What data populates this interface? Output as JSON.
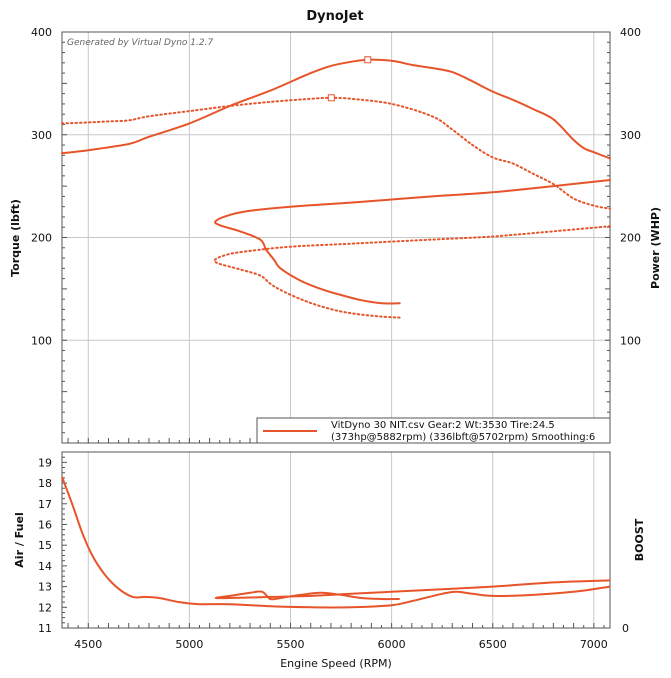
{
  "chart_data": [
    {
      "type": "line",
      "title": "DynoJet",
      "watermark": "Generated by Virtual Dyno 1.2.7",
      "ylabel_left": "Torque (lbft)",
      "ylabel_right": "Power (WHP)",
      "ylim": [
        0,
        400
      ],
      "xlim": [
        4370,
        7080
      ],
      "yticks_left": [
        "100",
        "200",
        "300",
        "400"
      ],
      "yticks_right": [
        "100",
        "200",
        "300",
        "400"
      ],
      "grid": true,
      "legend": {
        "placement": "bottom-right",
        "line1": "VitDyno 30 NIT.csv Gear:2 Wt:3530 Tire:24.5",
        "line2": "(373hp@5882rpm) (336lbft@5702rpm) Smoothing:6"
      },
      "series": [
        {
          "name": "Power",
          "style": "solid",
          "color": "#e8542a",
          "peak": [
            5882,
            373
          ],
          "points": [
            [
              4370,
              282
            ],
            [
              4500,
              285
            ],
            [
              4700,
              291
            ],
            [
              4800,
              298
            ],
            [
              5000,
              311
            ],
            [
              5200,
              328
            ],
            [
              5400,
              343
            ],
            [
              5600,
              360
            ],
            [
              5700,
              367
            ],
            [
              5800,
              371
            ],
            [
              5882,
              373
            ],
            [
              6000,
              372
            ],
            [
              6100,
              368
            ],
            [
              6200,
              365
            ],
            [
              6300,
              361
            ],
            [
              6400,
              352
            ],
            [
              6500,
              342
            ],
            [
              6600,
              334
            ],
            [
              6700,
              325
            ],
            [
              6800,
              315
            ],
            [
              6900,
              295
            ],
            [
              6950,
              287
            ],
            [
              7000,
              283
            ],
            [
              7080,
              277
            ]
          ]
        },
        {
          "name": "Torque",
          "style": "dotted",
          "color": "#e8542a",
          "peak": [
            5702,
            336
          ],
          "points": [
            [
              4370,
              311
            ],
            [
              4500,
              312
            ],
            [
              4600,
              313
            ],
            [
              4700,
              314
            ],
            [
              4800,
              318
            ],
            [
              5000,
              323
            ],
            [
              5200,
              328
            ],
            [
              5400,
              332
            ],
            [
              5600,
              335
            ],
            [
              5702,
              336
            ],
            [
              5800,
              335
            ],
            [
              6000,
              330
            ],
            [
              6200,
              318
            ],
            [
              6300,
              305
            ],
            [
              6400,
              290
            ],
            [
              6500,
              278
            ],
            [
              6600,
              272
            ],
            [
              6700,
              262
            ],
            [
              6800,
              252
            ],
            [
              6900,
              238
            ],
            [
              7000,
              231
            ],
            [
              7080,
              228
            ]
          ]
        },
        {
          "name": "Power (return)",
          "style": "solid",
          "color": "#e8542a",
          "points": [
            [
              7080,
              256
            ],
            [
              6800,
              250
            ],
            [
              6500,
              244
            ],
            [
              6200,
              240
            ],
            [
              6000,
              237
            ],
            [
              5800,
              234
            ],
            [
              5500,
              230
            ],
            [
              5300,
              226
            ],
            [
              5200,
              222
            ],
            [
              5130,
              216
            ],
            [
              5150,
              212
            ],
            [
              5250,
              206
            ],
            [
              5350,
              198
            ],
            [
              5380,
              188
            ],
            [
              5420,
              178
            ],
            [
              5450,
              170
            ],
            [
              5550,
              158
            ],
            [
              5650,
              150
            ],
            [
              5750,
              144
            ],
            [
              5850,
              139
            ],
            [
              5950,
              136
            ],
            [
              6040,
              136
            ]
          ]
        },
        {
          "name": "Torque (return)",
          "style": "dotted",
          "color": "#e8542a",
          "points": [
            [
              7080,
              211
            ],
            [
              6800,
              206
            ],
            [
              6500,
              201
            ],
            [
              6200,
              198
            ],
            [
              6000,
              196
            ],
            [
              5800,
              194
            ],
            [
              5500,
              191
            ],
            [
              5300,
              187
            ],
            [
              5200,
              184
            ],
            [
              5130,
              179
            ],
            [
              5140,
              175
            ],
            [
              5250,
              169
            ],
            [
              5350,
              163
            ],
            [
              5400,
              155
            ],
            [
              5450,
              149
            ],
            [
              5550,
              140
            ],
            [
              5650,
              133
            ],
            [
              5750,
              128
            ],
            [
              5850,
              125
            ],
            [
              5950,
              123
            ],
            [
              6040,
              122
            ]
          ]
        }
      ]
    },
    {
      "type": "line",
      "xlabel": "Engine Speed (RPM)",
      "ylabel_left": "Air / Fuel",
      "ylabel_right": "BOOST",
      "ylim": [
        11,
        19.5
      ],
      "xlim": [
        4370,
        7080
      ],
      "yticks_left": [
        "11",
        "12",
        "13",
        "14",
        "15",
        "16",
        "17",
        "18",
        "19"
      ],
      "yticks_right": [
        "0"
      ],
      "xticks": [
        "4500",
        "5000",
        "5500",
        "6000",
        "6500",
        "7000"
      ],
      "grid": true,
      "series": [
        {
          "name": "AFR",
          "color": "#e8542a",
          "points": [
            [
              4370,
              18.3
            ],
            [
              4420,
              17.0
            ],
            [
              4470,
              15.6
            ],
            [
              4520,
              14.5
            ],
            [
              4580,
              13.6
            ],
            [
              4650,
              12.9
            ],
            [
              4720,
              12.5
            ],
            [
              4780,
              12.5
            ],
            [
              4850,
              12.45
            ],
            [
              4950,
              12.25
            ],
            [
              5050,
              12.15
            ],
            [
              5200,
              12.15
            ],
            [
              5400,
              12.05
            ],
            [
              5600,
              12.0
            ],
            [
              5800,
              12.0
            ],
            [
              6000,
              12.1
            ],
            [
              6100,
              12.3
            ],
            [
              6250,
              12.65
            ],
            [
              6320,
              12.75
            ],
            [
              6400,
              12.65
            ],
            [
              6500,
              12.55
            ],
            [
              6700,
              12.6
            ],
            [
              6900,
              12.75
            ],
            [
              7080,
              13.0
            ]
          ]
        },
        {
          "name": "AFR (return)",
          "color": "#e8542a",
          "points": [
            [
              7080,
              13.3
            ],
            [
              6800,
              13.2
            ],
            [
              6500,
              13.0
            ],
            [
              6200,
              12.85
            ],
            [
              6000,
              12.75
            ],
            [
              5800,
              12.65
            ],
            [
              5600,
              12.55
            ],
            [
              5400,
              12.5
            ],
            [
              5200,
              12.45
            ],
            [
              5130,
              12.45
            ],
            [
              5200,
              12.55
            ],
            [
              5300,
              12.7
            ],
            [
              5360,
              12.75
            ],
            [
              5400,
              12.4
            ],
            [
              5450,
              12.45
            ],
            [
              5550,
              12.6
            ],
            [
              5650,
              12.7
            ],
            [
              5750,
              12.6
            ],
            [
              5850,
              12.45
            ],
            [
              5950,
              12.4
            ],
            [
              6040,
              12.4
            ]
          ]
        }
      ]
    }
  ]
}
